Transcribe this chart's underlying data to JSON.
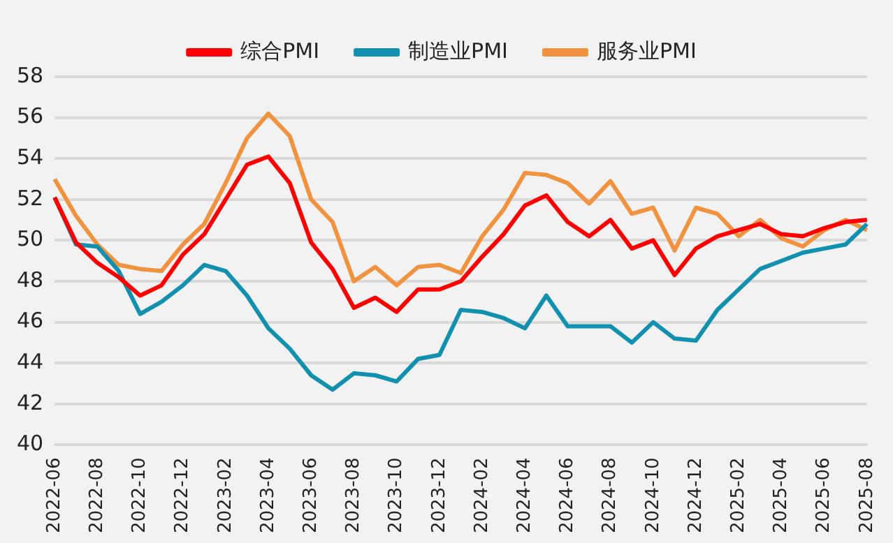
{
  "chart_data": {
    "type": "line",
    "categories": [
      "2022-06",
      null,
      "2022-08",
      null,
      "2022-10",
      null,
      "2022-12",
      null,
      "2023-02",
      null,
      "2023-04",
      null,
      "2023-06",
      null,
      "2023-08",
      null,
      "2023-10",
      null,
      "2023-12",
      null,
      "2024-02",
      null,
      "2024-04",
      null,
      "2024-06",
      null,
      "2024-08",
      null,
      "2024-10",
      null,
      "2024-12",
      null,
      "2025-02",
      null,
      "2025-04",
      null,
      "2025-06",
      null,
      "2025-08"
    ],
    "series": [
      {
        "name": "综合PMI",
        "color": "#ff0000",
        "values": [
          52.1,
          49.9,
          48.9,
          48.2,
          47.3,
          47.8,
          49.3,
          50.3,
          52.0,
          53.7,
          54.1,
          52.8,
          49.9,
          48.6,
          46.7,
          47.2,
          46.5,
          47.6,
          47.6,
          48.0,
          49.2,
          50.3,
          51.7,
          52.2,
          50.9,
          50.2,
          51.0,
          49.6,
          50.0,
          48.3,
          49.6,
          50.2,
          50.5,
          50.8,
          50.3,
          50.2,
          50.6,
          50.9,
          51.0
        ]
      },
      {
        "name": "制造业PMI",
        "color": "#1190b0",
        "values": [
          52.1,
          49.8,
          49.7,
          48.5,
          46.4,
          47.0,
          47.8,
          48.8,
          48.5,
          47.3,
          45.7,
          44.7,
          43.4,
          42.7,
          43.5,
          43.4,
          43.1,
          44.2,
          44.4,
          46.6,
          46.5,
          46.2,
          45.7,
          47.3,
          45.8,
          45.8,
          45.8,
          45.0,
          46.0,
          45.2,
          45.1,
          46.6,
          47.6,
          48.6,
          49.0,
          49.4,
          49.6,
          49.8,
          50.8
        ]
      },
      {
        "name": "服务业PMI",
        "color": "#f0923e",
        "values": [
          53.0,
          51.2,
          49.8,
          48.8,
          48.6,
          48.5,
          49.8,
          50.8,
          52.8,
          55.0,
          56.2,
          55.1,
          52.0,
          50.9,
          48.0,
          48.7,
          47.8,
          48.7,
          48.8,
          48.4,
          50.2,
          51.5,
          53.3,
          53.2,
          52.8,
          51.8,
          52.9,
          51.3,
          51.6,
          49.5,
          51.6,
          51.3,
          50.2,
          51.0,
          50.1,
          49.7,
          50.5,
          51.0,
          50.5
        ]
      }
    ],
    "ylim": [
      40,
      58
    ],
    "yticks": [
      40,
      42,
      44,
      46,
      48,
      50,
      52,
      54,
      56,
      58
    ],
    "grid": "y",
    "legend": "top",
    "marker": "none",
    "line_style": "solid"
  }
}
